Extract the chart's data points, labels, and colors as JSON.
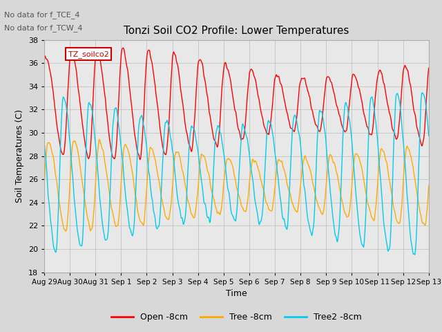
{
  "title": "Tonzi Soil CO2 Profile: Lower Temperatures",
  "xlabel": "Time",
  "ylabel": "Soil Temperatures (C)",
  "ylim": [
    18,
    38
  ],
  "yticks": [
    18,
    20,
    22,
    24,
    26,
    28,
    30,
    32,
    34,
    36,
    38
  ],
  "annotations": [
    "No data for f_TCE_4",
    "No data for f_TCW_4"
  ],
  "cursor_label": "TZ_soilco2",
  "legend_labels": [
    "Open -8cm",
    "Tree -8cm",
    "Tree2 -8cm"
  ],
  "line_colors": [
    "#ff0000",
    "#ffaa00",
    "#00ccee"
  ],
  "background_color": "#d8d8d8",
  "plot_bg_color": "#e8e8e8",
  "grid_color": "#bbbbbb",
  "x_tick_labels": [
    "Aug 29",
    "Aug 30",
    "Aug 31",
    "Sep 1",
    "Sep 2",
    "Sep 3",
    "Sep 4",
    "Sep 5",
    "Sep 6",
    "Sep 7",
    "Sep 8",
    "Sep 9",
    "Sep 10",
    "Sep 11",
    "Sep 12",
    "Sep 13"
  ]
}
